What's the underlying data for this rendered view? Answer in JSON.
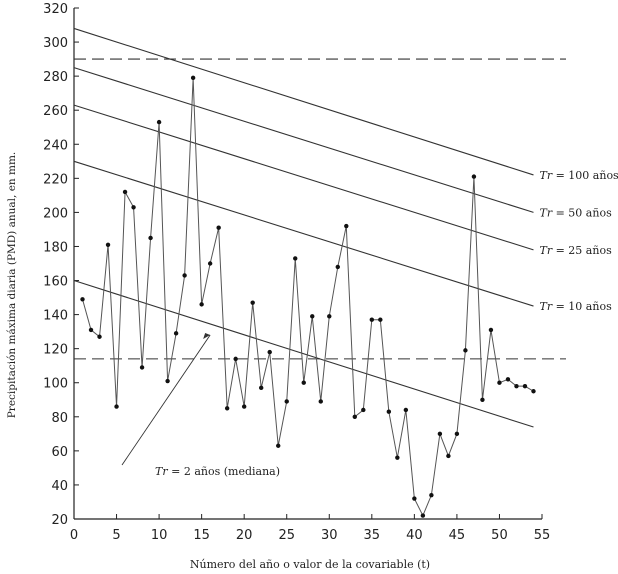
{
  "chart_data": {
    "type": "line",
    "xlabel": "Número del año o valor de la covariable (t)",
    "ylabel": "Precipitación máxima diaria (PMD) anual, en mm.",
    "xlim": [
      0,
      55
    ],
    "ylim": [
      20,
      320
    ],
    "x_ticks": [
      0,
      5,
      10,
      15,
      20,
      25,
      30,
      35,
      40,
      45,
      50,
      55
    ],
    "y_ticks": [
      20,
      40,
      60,
      80,
      100,
      120,
      140,
      160,
      180,
      200,
      220,
      240,
      260,
      280,
      300,
      320
    ],
    "series": [
      {
        "x": [
          1,
          2,
          3,
          4,
          5,
          6,
          7,
          8,
          9,
          10,
          11,
          12,
          13,
          14,
          15,
          16,
          17,
          18,
          19,
          20,
          21,
          22,
          23,
          24,
          25,
          26,
          27,
          28,
          29,
          30,
          31,
          32,
          33,
          34,
          35,
          36,
          37,
          38,
          39,
          40,
          41,
          42,
          43,
          44,
          45,
          46,
          47,
          48,
          49,
          50,
          51,
          52,
          53,
          54
        ],
        "values": [
          149,
          131,
          127,
          181,
          86,
          212,
          203,
          109,
          185,
          253,
          101,
          129,
          163,
          279,
          146,
          170,
          191,
          85,
          114,
          86,
          147,
          97,
          118,
          63,
          89,
          173,
          100,
          139,
          89,
          139,
          168,
          192,
          80,
          84,
          137,
          137,
          83,
          56,
          84,
          32,
          22,
          34,
          70,
          57,
          70,
          119,
          221,
          90,
          131,
          100,
          102,
          98,
          98,
          95
        ]
      }
    ],
    "trend_lines": [
      {
        "label": "Tr = 100 años",
        "label_em": "Tr",
        "label_rest": " = 100 años",
        "start": [
          0,
          308
        ],
        "end": [
          54,
          222
        ]
      },
      {
        "label": "Tr = 50 años",
        "label_em": "Tr",
        "label_rest": " = 50 años",
        "start": [
          0,
          285
        ],
        "end": [
          54,
          200
        ]
      },
      {
        "label": "Tr = 25 años",
        "label_em": "Tr",
        "label_rest": " = 25 años",
        "start": [
          0,
          263
        ],
        "end": [
          54,
          178
        ]
      },
      {
        "label": "Tr = 10 años",
        "label_em": "Tr",
        "label_rest": " = 10 años",
        "start": [
          0,
          230
        ],
        "end": [
          54,
          145
        ]
      },
      {
        "label": "Tr = 2 años (mediana)",
        "label_em": "Tr",
        "label_rest": " = 2 años (mediana)",
        "start": [
          0,
          160
        ],
        "end": [
          54,
          74
        ]
      }
    ],
    "reference_lines": [
      290,
      114
    ],
    "annotation": {
      "text": "Tr = 2 años (mediana)",
      "em": "Tr",
      "rest": " = 2 años (mediana)",
      "arrow_to": [
        16,
        128
      ]
    },
    "grid": false
  }
}
